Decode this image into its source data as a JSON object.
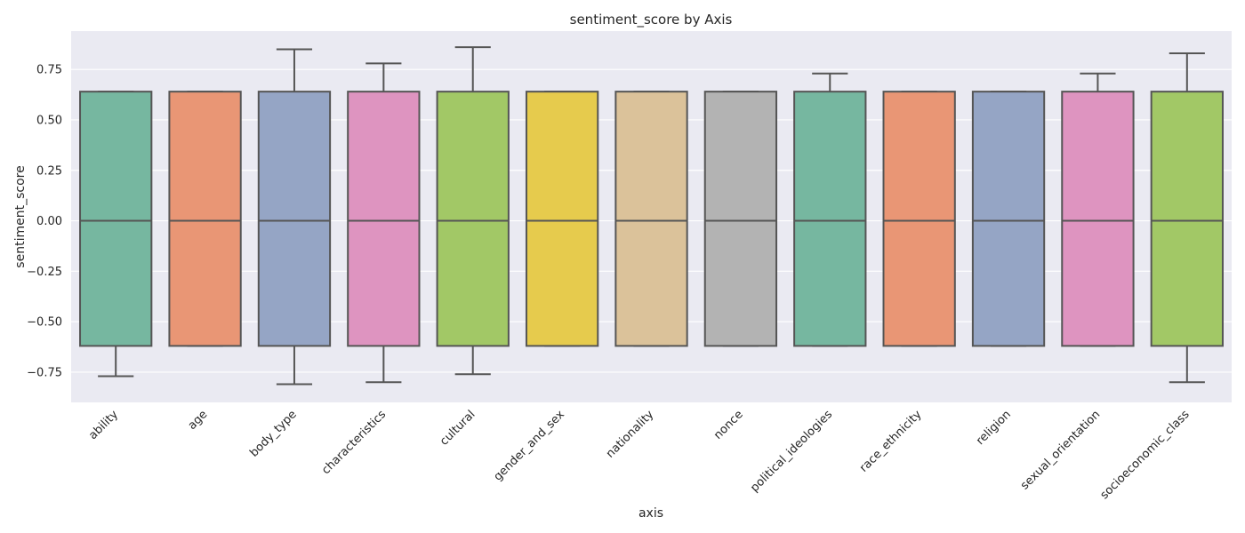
{
  "chart_data": {
    "type": "box",
    "title": "sentiment_score by Axis",
    "xlabel": "axis",
    "ylabel": "sentiment_score",
    "ylim": [
      -0.9,
      0.94
    ],
    "yticks": [
      -0.75,
      -0.5,
      -0.25,
      0.0,
      0.25,
      0.5,
      0.75
    ],
    "ytick_labels": [
      "−0.75",
      "−0.50",
      "−0.25",
      "0.00",
      "0.25",
      "0.50",
      "0.75"
    ],
    "grid": true,
    "categories": [
      "ability",
      "age",
      "body_type",
      "characteristics",
      "cultural",
      "gender_and_sex",
      "nationality",
      "nonce",
      "political_ideologies",
      "race_ethnicity",
      "religion",
      "sexual_orientation",
      "socioeconomic_class"
    ],
    "colors": [
      "#76b7a0",
      "#e99675",
      "#95a5c5",
      "#de94c0",
      "#a2c866",
      "#e6cb4d",
      "#dbc29a",
      "#b3b3b3",
      "#76b7a0",
      "#e99675",
      "#95a5c5",
      "#de94c0",
      "#a2c866"
    ],
    "boxes": [
      {
        "whisker_low": -0.77,
        "q1": -0.62,
        "median": 0.0,
        "q3": 0.64,
        "whisker_high": 0.64
      },
      {
        "whisker_low": -0.62,
        "q1": -0.62,
        "median": 0.0,
        "q3": 0.64,
        "whisker_high": 0.64
      },
      {
        "whisker_low": -0.81,
        "q1": -0.62,
        "median": 0.0,
        "q3": 0.64,
        "whisker_high": 0.85
      },
      {
        "whisker_low": -0.8,
        "q1": -0.62,
        "median": 0.0,
        "q3": 0.64,
        "whisker_high": 0.78
      },
      {
        "whisker_low": -0.76,
        "q1": -0.62,
        "median": 0.0,
        "q3": 0.64,
        "whisker_high": 0.86
      },
      {
        "whisker_low": -0.62,
        "q1": -0.62,
        "median": 0.0,
        "q3": 0.64,
        "whisker_high": 0.64
      },
      {
        "whisker_low": -0.62,
        "q1": -0.62,
        "median": 0.0,
        "q3": 0.64,
        "whisker_high": 0.64
      },
      {
        "whisker_low": -0.62,
        "q1": -0.62,
        "median": 0.0,
        "q3": 0.64,
        "whisker_high": 0.64
      },
      {
        "whisker_low": -0.62,
        "q1": -0.62,
        "median": 0.0,
        "q3": 0.64,
        "whisker_high": 0.73
      },
      {
        "whisker_low": -0.62,
        "q1": -0.62,
        "median": 0.0,
        "q3": 0.64,
        "whisker_high": 0.64
      },
      {
        "whisker_low": -0.62,
        "q1": -0.62,
        "median": 0.0,
        "q3": 0.64,
        "whisker_high": 0.64
      },
      {
        "whisker_low": -0.62,
        "q1": -0.62,
        "median": 0.0,
        "q3": 0.64,
        "whisker_high": 0.73
      },
      {
        "whisker_low": -0.8,
        "q1": -0.62,
        "median": 0.0,
        "q3": 0.64,
        "whisker_high": 0.83
      }
    ]
  }
}
